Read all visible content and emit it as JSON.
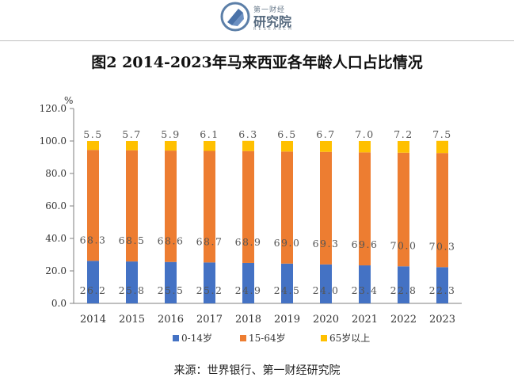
{
  "header": {
    "logo_top": "第一财经",
    "logo_main": "研究院",
    "logo_sub": "RESEARCH"
  },
  "chart_data": {
    "type": "bar",
    "stacked": true,
    "title": "图2 2014-2023年马来西亚各年龄人口占比情况",
    "unit_label": "%",
    "categories": [
      "2014",
      "2015",
      "2016",
      "2017",
      "2018",
      "2019",
      "2020",
      "2021",
      "2022",
      "2023"
    ],
    "series": [
      {
        "name": "0-14岁",
        "color": "#4472c4",
        "values": [
          26.2,
          25.8,
          25.5,
          25.2,
          24.9,
          24.5,
          24.0,
          23.4,
          22.8,
          22.3
        ]
      },
      {
        "name": "15-64岁",
        "color": "#ed7d31",
        "values": [
          68.3,
          68.5,
          68.6,
          68.7,
          68.9,
          69.0,
          69.3,
          69.6,
          70.0,
          70.3
        ]
      },
      {
        "name": "65岁以上",
        "color": "#ffc000",
        "values": [
          5.5,
          5.7,
          5.9,
          6.1,
          6.3,
          6.5,
          6.7,
          7.0,
          7.2,
          7.5
        ]
      }
    ],
    "y_ticks": [
      "0.0",
      "20.0",
      "40.0",
      "60.0",
      "80.0",
      "100.0",
      "120.0"
    ],
    "ylim": [
      0,
      120
    ],
    "grid": false,
    "legend_position": "bottom"
  },
  "source": "来源：世界银行、第一财经研究院"
}
